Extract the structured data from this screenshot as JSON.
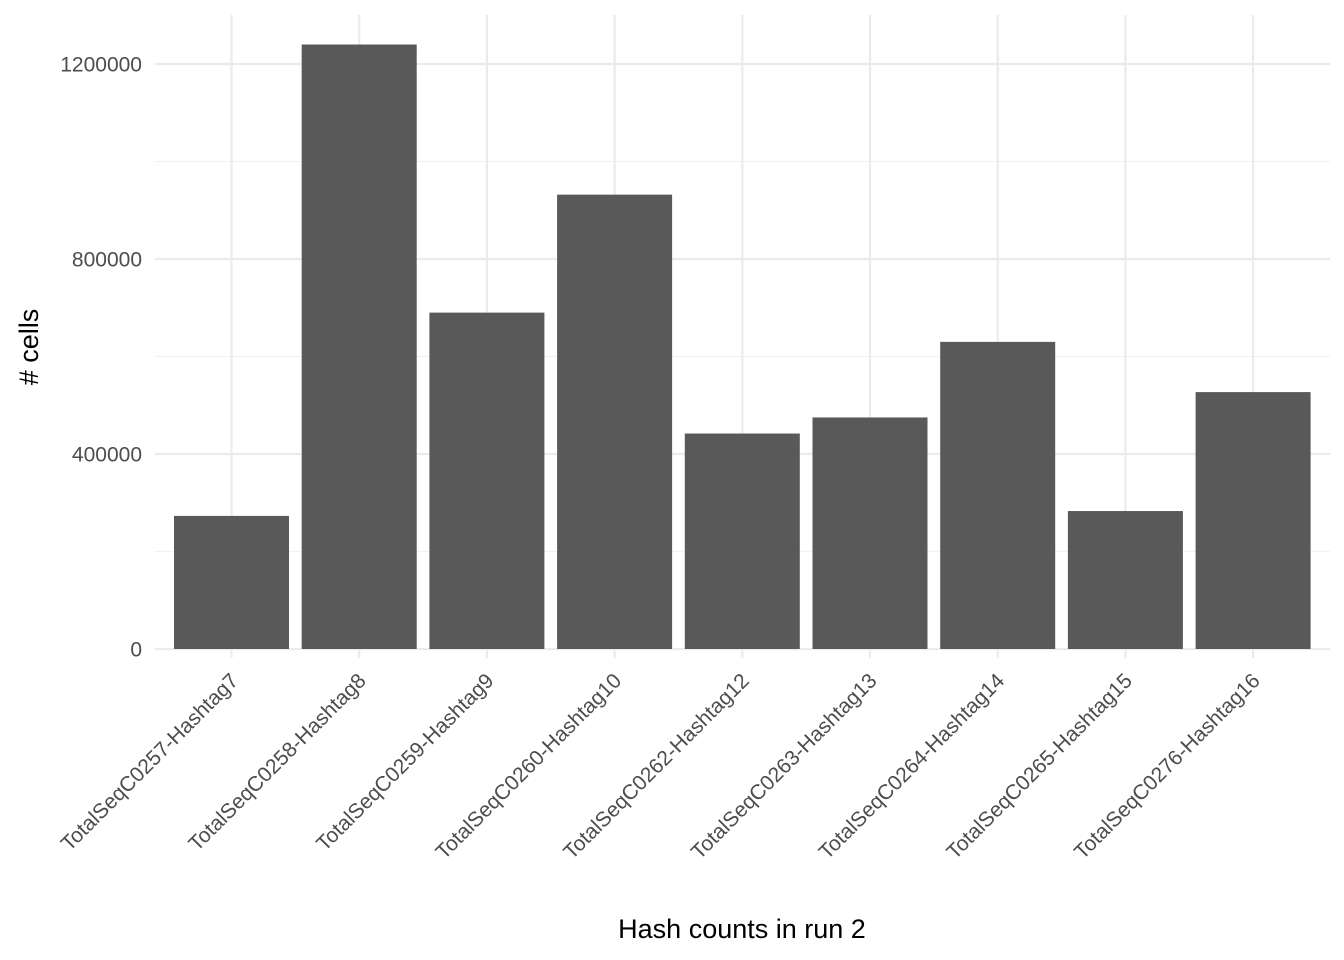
{
  "chart_data": {
    "type": "bar",
    "title": "",
    "xlabel": "Hash counts in run 2",
    "ylabel": "# cells",
    "categories": [
      "TotalSeqC0257-Hashtag7",
      "TotalSeqC0258-Hashtag8",
      "TotalSeqC0259-Hashtag9",
      "TotalSeqC0260-Hashtag10",
      "TotalSeqC0262-Hashtag12",
      "TotalSeqC0263-Hashtag13",
      "TotalSeqC0264-Hashtag14",
      "TotalSeqC0265-Hashtag15",
      "TotalSeqC0276-Hashtag16"
    ],
    "values": [
      273000,
      1240000,
      690000,
      932000,
      442000,
      475000,
      630000,
      283000,
      527000
    ],
    "ylim": [
      0,
      1300000
    ],
    "yticks": [
      0,
      400000,
      800000,
      1200000
    ],
    "ytick_labels": [
      "0",
      "400000",
      "800000",
      "1200000"
    ],
    "grid": true,
    "legend": "none",
    "colors": {
      "bar": "#595959",
      "grid_major": "#ebebeb",
      "grid_minor": "#f2f2f2",
      "tick_text": "#4d4d4d"
    }
  }
}
